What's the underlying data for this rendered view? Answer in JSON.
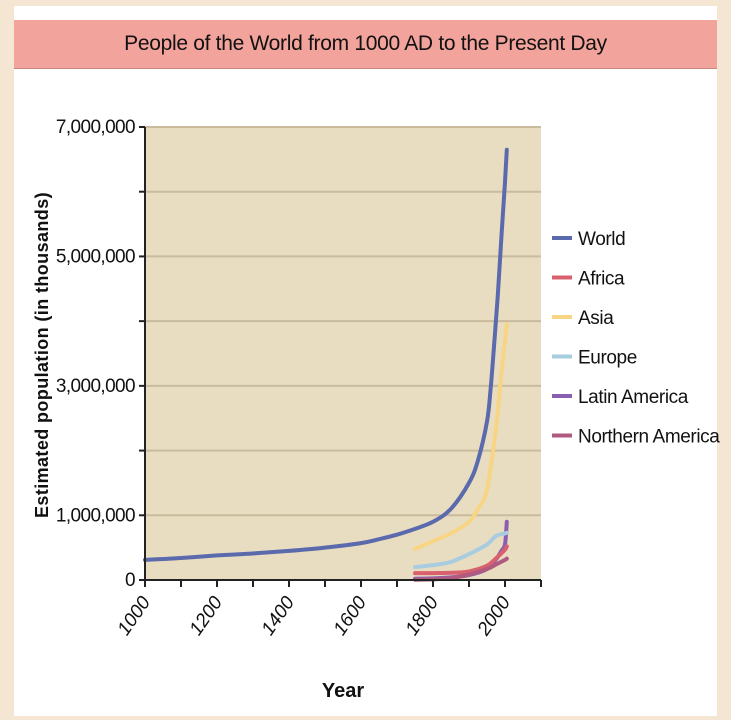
{
  "colors": {
    "plot_background": "#e8dcc1",
    "title_bar": "#f2a39c",
    "world": "#5a6aac",
    "africa": "#d9616d",
    "asia": "#f7d584",
    "europe": "#a9cde0",
    "latin_america": "#8a5fb0",
    "northern_america": "#b05a7f"
  },
  "chart_data": {
    "type": "line",
    "title": "People of the World from 1000 AD to the Present Day",
    "xlabel": "Year",
    "ylabel": "Estimated population (in thousands)",
    "xlim": [
      1000,
      2100
    ],
    "ylim": [
      0,
      7000000
    ],
    "x_ticks": [
      "1000",
      "1200",
      "1400",
      "1600",
      "1800",
      "2000"
    ],
    "y_tick_labels": [
      "7,000,000",
      "5,000,000",
      "3,000,000",
      "1,000,000",
      "0"
    ],
    "y_tick_values": [
      7000000,
      5000000,
      3000000,
      1000000,
      0
    ],
    "grid": true,
    "legend_position": "right",
    "series": [
      {
        "name": "World",
        "color_key": "world",
        "points": [
          [
            1000,
            310000
          ],
          [
            1100,
            340000
          ],
          [
            1200,
            380000
          ],
          [
            1300,
            410000
          ],
          [
            1400,
            450000
          ],
          [
            1500,
            500000
          ],
          [
            1600,
            570000
          ],
          [
            1650,
            630000
          ],
          [
            1700,
            700000
          ],
          [
            1750,
            790000
          ],
          [
            1800,
            900000
          ],
          [
            1850,
            1100000
          ],
          [
            1900,
            1500000
          ],
          [
            1925,
            1850000
          ],
          [
            1950,
            2450000
          ],
          [
            1960,
            2950000
          ],
          [
            1970,
            3650000
          ],
          [
            1980,
            4400000
          ],
          [
            1990,
            5300000
          ],
          [
            2000,
            6150000
          ],
          [
            2005,
            6650000
          ]
        ]
      },
      {
        "name": "Africa",
        "color_key": "africa",
        "points": [
          [
            1750,
            106000
          ],
          [
            1800,
            107000
          ],
          [
            1850,
            111000
          ],
          [
            1900,
            133000
          ],
          [
            1950,
            221000
          ],
          [
            1975,
            335000
          ],
          [
            2000,
            470000
          ],
          [
            2005,
            520000
          ]
        ]
      },
      {
        "name": "Asia",
        "color_key": "asia",
        "points": [
          [
            1750,
            480000
          ],
          [
            1800,
            600000
          ],
          [
            1850,
            720000
          ],
          [
            1900,
            900000
          ],
          [
            1925,
            1100000
          ],
          [
            1950,
            1400000
          ],
          [
            1975,
            2350000
          ],
          [
            1990,
            3200000
          ],
          [
            2000,
            3700000
          ],
          [
            2005,
            3950000
          ]
        ]
      },
      {
        "name": "Europe",
        "color_key": "europe",
        "points": [
          [
            1750,
            200000
          ],
          [
            1800,
            230000
          ],
          [
            1850,
            280000
          ],
          [
            1900,
            400000
          ],
          [
            1950,
            550000
          ],
          [
            1975,
            680000
          ],
          [
            2000,
            720000
          ],
          [
            2005,
            730000
          ]
        ]
      },
      {
        "name": "Latin America",
        "color_key": "latin_america",
        "points": [
          [
            1750,
            20000
          ],
          [
            1800,
            25000
          ],
          [
            1850,
            40000
          ],
          [
            1900,
            75000
          ],
          [
            1950,
            170000
          ],
          [
            1975,
            320000
          ],
          [
            1990,
            450000
          ],
          [
            2000,
            550000
          ],
          [
            2005,
            900000
          ]
        ]
      },
      {
        "name": "Northern America",
        "color_key": "northern_america",
        "points": [
          [
            1750,
            5000
          ],
          [
            1800,
            10000
          ],
          [
            1850,
            30000
          ],
          [
            1900,
            85000
          ],
          [
            1950,
            170000
          ],
          [
            1975,
            240000
          ],
          [
            2000,
            310000
          ],
          [
            2005,
            330000
          ]
        ]
      }
    ]
  }
}
